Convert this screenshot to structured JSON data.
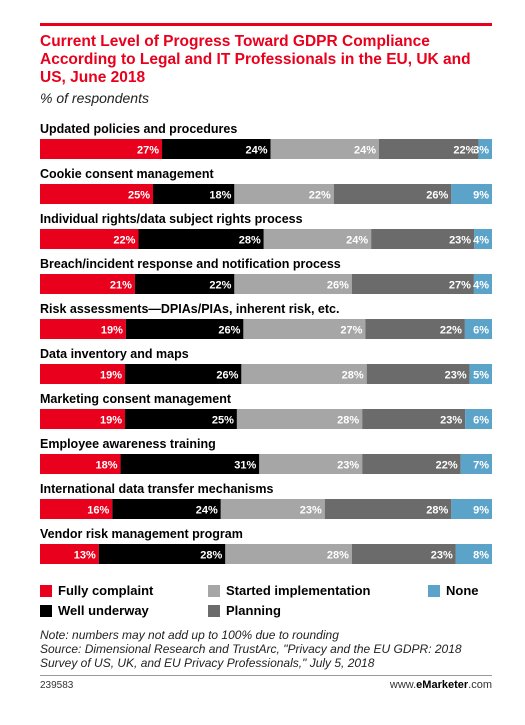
{
  "title": "Current Level of Progress Toward GDPR Compliance According to Legal and IT Professionals in the EU, UK and US, June 2018",
  "subtitle": "% of respondents",
  "chart_data": {
    "type": "bar",
    "stacked": true,
    "orientation": "horizontal",
    "categories": [
      "Updated policies and procedures",
      "Cookie consent management",
      "Individual rights/data subject rights process",
      "Breach/incident response and notification process",
      "Risk assessments—DPIAs/PIAs, inherent risk, etc.",
      "Data inventory and maps",
      "Marketing consent management",
      "Employee awareness training",
      "International data transfer mechanisms",
      "Vendor risk management program"
    ],
    "series": [
      {
        "name": "Fully complaint",
        "color": "#e8001c",
        "values": [
          27,
          25,
          22,
          21,
          19,
          19,
          19,
          18,
          16,
          13
        ]
      },
      {
        "name": "Well underway",
        "color": "#000000",
        "values": [
          24,
          18,
          28,
          22,
          26,
          26,
          25,
          31,
          24,
          28
        ]
      },
      {
        "name": "Started implementation",
        "color": "#a6a6a6",
        "values": [
          24,
          22,
          24,
          26,
          27,
          28,
          28,
          23,
          23,
          28
        ]
      },
      {
        "name": "Planning",
        "color": "#6b6b6b",
        "values": [
          22,
          26,
          23,
          27,
          22,
          23,
          23,
          22,
          28,
          23
        ]
      },
      {
        "name": "None",
        "color": "#5ba3c9",
        "values": [
          3,
          9,
          4,
          4,
          6,
          5,
          6,
          7,
          9,
          8
        ]
      }
    ],
    "value_labels": [
      [
        "27%",
        "25%",
        "22%",
        "21%",
        "19%",
        "19%",
        "19%",
        "18%",
        "16%",
        "13%"
      ],
      [
        "24%",
        "18%",
        "28%",
        "22%",
        "26%",
        "26%",
        "25%",
        "31%",
        "24%",
        "28%"
      ],
      [
        "24%",
        "22%",
        "24%",
        "26%",
        "27%",
        "28%",
        "28%",
        "23%",
        "23%",
        "28%"
      ],
      [
        "22%",
        "26%",
        "23%",
        "27%",
        "22%",
        "23%",
        "23%",
        "22%",
        "28%",
        "23%"
      ],
      [
        "3%",
        "9%",
        "4%",
        "4%",
        "6%",
        "5%",
        "6%",
        "7%",
        "9%",
        "8%"
      ]
    ],
    "legend_placement": "bottom"
  },
  "note": "Note: numbers may not add up to 100% due to rounding",
  "source": "Source: Dimensional Research and TrustArc, \"Privacy and the EU GDPR: 2018 Survey of US, UK, and EU Privacy Professionals,\" July 5, 2018",
  "footer": {
    "id": "239583",
    "brand_prefix": "www.",
    "brand_bold": "eMarketer",
    "brand_suffix": ".com"
  }
}
